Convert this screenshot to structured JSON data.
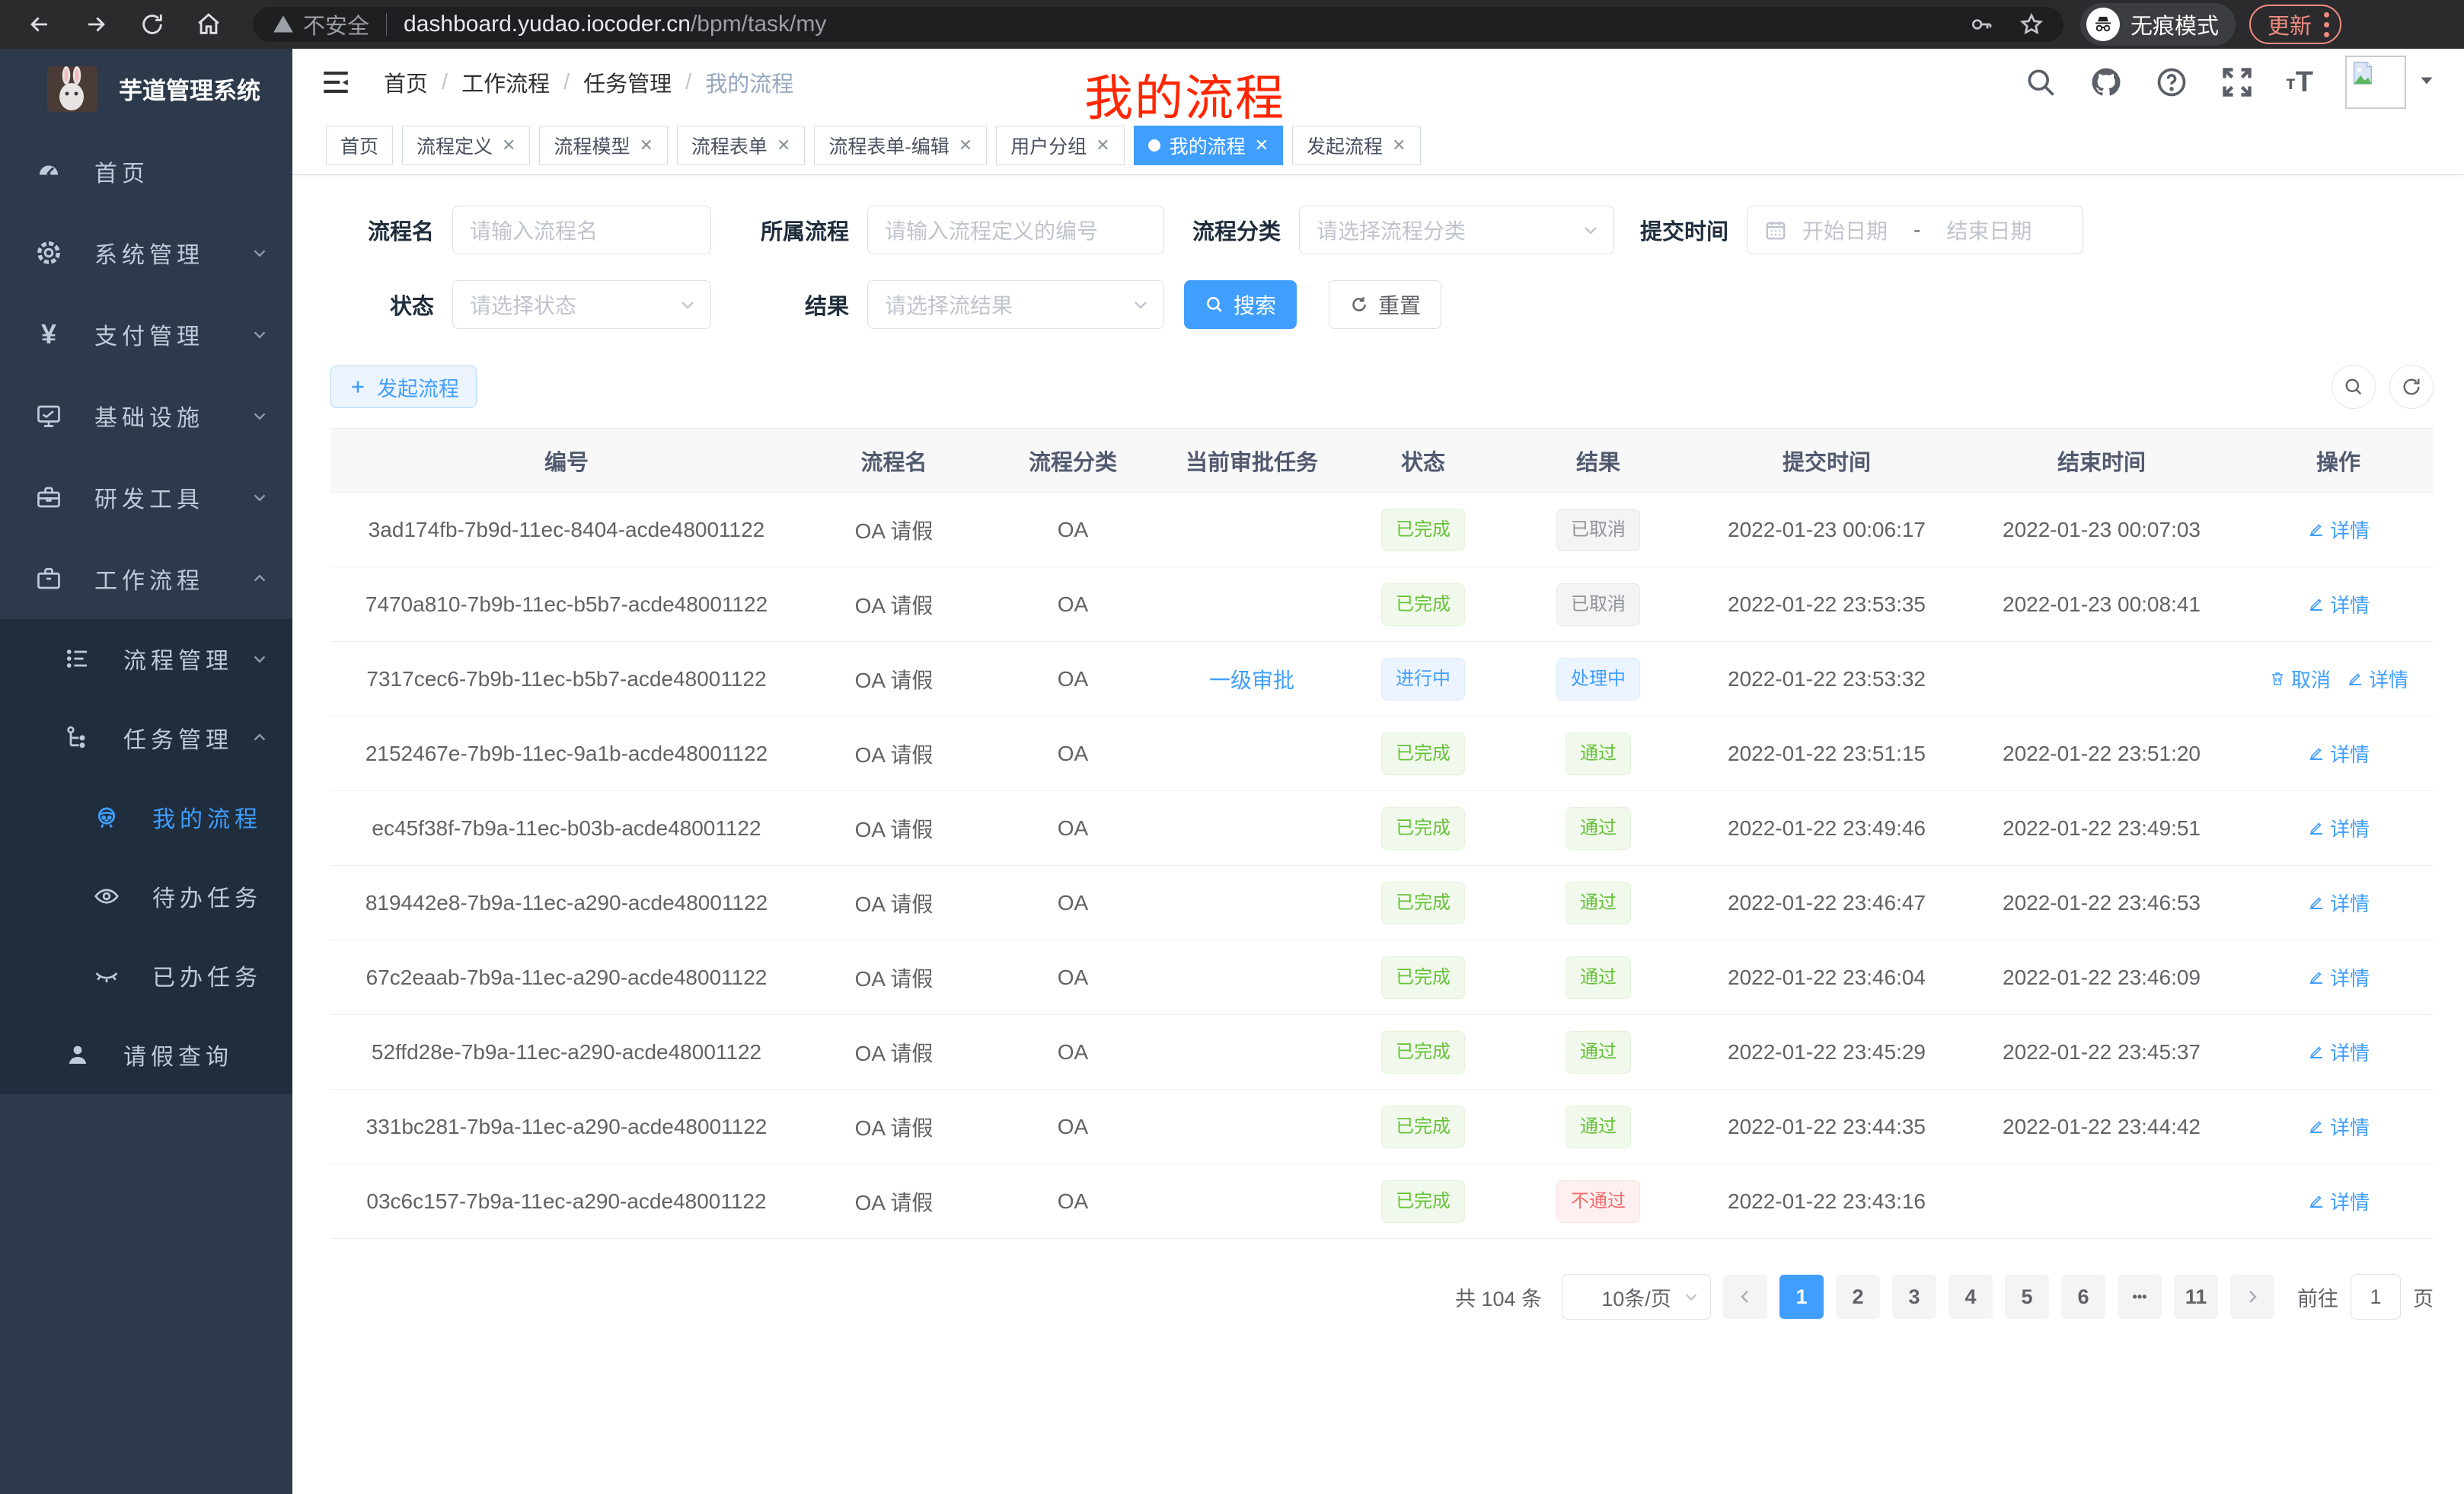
{
  "colors": {
    "primary": "#409eff",
    "success": "#67c23a",
    "info": "#909399",
    "danger": "#f56c6c",
    "annotation_red": "#ff2600",
    "sidebar_bg": "#2d3a4b",
    "submenu_bg": "#1f2d3d",
    "update_accent": "#f28b82"
  },
  "browser": {
    "security_label": "不安全",
    "url_host": "dashboard.yudao.iocoder.cn",
    "url_path": "/bpm/task/my",
    "incognito_label": "无痕模式",
    "update_label": "更新"
  },
  "sidebar": {
    "title": "芋道管理系统",
    "items": [
      {
        "label": "首页",
        "icon": "dashboard-icon",
        "level": 1
      },
      {
        "label": "系统管理",
        "icon": "gear-icon",
        "level": 1,
        "chevron": "down"
      },
      {
        "label": "支付管理",
        "icon": "yen-icon",
        "level": 1,
        "chevron": "down"
      },
      {
        "label": "基础设施",
        "icon": "monitor-icon",
        "level": 1,
        "chevron": "down"
      },
      {
        "label": "研发工具",
        "icon": "toolbox-icon",
        "level": 1,
        "chevron": "down"
      },
      {
        "label": "工作流程",
        "icon": "briefcase-icon",
        "level": 1,
        "chevron": "up"
      },
      {
        "label": "流程管理",
        "icon": "list-icon",
        "level": 2,
        "chevron": "down",
        "sub": true
      },
      {
        "label": "任务管理",
        "icon": "flow-icon",
        "level": 2,
        "chevron": "up",
        "sub": true
      },
      {
        "label": "我的流程",
        "icon": "robot-icon",
        "level": 3,
        "active": true,
        "sub": true
      },
      {
        "label": "待办任务",
        "icon": "eye-icon",
        "level": 3,
        "sub": true
      },
      {
        "label": "已办任务",
        "icon": "eye-closed-icon",
        "level": 3,
        "sub": true
      },
      {
        "label": "请假查询",
        "icon": "user-icon",
        "level": 2,
        "sub": true
      }
    ]
  },
  "header": {
    "breadcrumb": [
      "首页",
      "工作流程",
      "任务管理",
      "我的流程"
    ],
    "annotation": "我的流程",
    "icons": [
      "search-icon",
      "github-icon",
      "help-icon",
      "fullscreen-icon",
      "font-size-icon",
      "avatar-broken-image"
    ]
  },
  "tabs": [
    {
      "label": "首页",
      "closable": false
    },
    {
      "label": "流程定义",
      "closable": true
    },
    {
      "label": "流程模型",
      "closable": true
    },
    {
      "label": "流程表单",
      "closable": true
    },
    {
      "label": "流程表单-编辑",
      "closable": true
    },
    {
      "label": "用户分组",
      "closable": true
    },
    {
      "label": "我的流程",
      "closable": true,
      "active": true
    },
    {
      "label": "发起流程",
      "closable": true
    }
  ],
  "filters": {
    "name": {
      "label": "流程名",
      "placeholder": "请输入流程名"
    },
    "process": {
      "label": "所属流程",
      "placeholder": "请输入流程定义的编号"
    },
    "category": {
      "label": "流程分类",
      "placeholder": "请选择流程分类"
    },
    "time": {
      "label": "提交时间",
      "start_placeholder": "开始日期",
      "separator": "-",
      "end_placeholder": "结束日期"
    },
    "status": {
      "label": "状态",
      "placeholder": "请选择状态"
    },
    "result": {
      "label": "结果",
      "placeholder": "请选择流结果"
    },
    "search_label": "搜索",
    "reset_label": "重置"
  },
  "toolbar": {
    "launch_label": "发起流程"
  },
  "table": {
    "columns": [
      "编号",
      "流程名",
      "流程分类",
      "当前审批任务",
      "状态",
      "结果",
      "提交时间",
      "结束时间",
      "操作"
    ],
    "rows": [
      {
        "id": "3ad174fb-7b9d-11ec-8404-acde48001122",
        "name": "OA 请假",
        "category": "OA",
        "task": "",
        "status": {
          "label": "已完成",
          "type": "success"
        },
        "result": {
          "label": "已取消",
          "type": "info"
        },
        "submit": "2022-01-23 00:06:17",
        "end": "2022-01-23 00:07:03",
        "actions": [
          {
            "label": "详情",
            "icon": "edit-icon"
          }
        ]
      },
      {
        "id": "7470a810-7b9b-11ec-b5b7-acde48001122",
        "name": "OA 请假",
        "category": "OA",
        "task": "",
        "status": {
          "label": "已完成",
          "type": "success"
        },
        "result": {
          "label": "已取消",
          "type": "info"
        },
        "submit": "2022-01-22 23:53:35",
        "end": "2022-01-23 00:08:41",
        "actions": [
          {
            "label": "详情",
            "icon": "edit-icon"
          }
        ]
      },
      {
        "id": "7317cec6-7b9b-11ec-b5b7-acde48001122",
        "name": "OA 请假",
        "category": "OA",
        "task": "一级审批",
        "status": {
          "label": "进行中",
          "type": "primary"
        },
        "result": {
          "label": "处理中",
          "type": "primary"
        },
        "submit": "2022-01-22 23:53:32",
        "end": "",
        "actions": [
          {
            "label": "取消",
            "icon": "cancel-icon"
          },
          {
            "label": "详情",
            "icon": "edit-icon"
          }
        ]
      },
      {
        "id": "2152467e-7b9b-11ec-9a1b-acde48001122",
        "name": "OA 请假",
        "category": "OA",
        "task": "",
        "status": {
          "label": "已完成",
          "type": "success"
        },
        "result": {
          "label": "通过",
          "type": "success"
        },
        "submit": "2022-01-22 23:51:15",
        "end": "2022-01-22 23:51:20",
        "actions": [
          {
            "label": "详情",
            "icon": "edit-icon"
          }
        ]
      },
      {
        "id": "ec45f38f-7b9a-11ec-b03b-acde48001122",
        "name": "OA 请假",
        "category": "OA",
        "task": "",
        "status": {
          "label": "已完成",
          "type": "success"
        },
        "result": {
          "label": "通过",
          "type": "success"
        },
        "submit": "2022-01-22 23:49:46",
        "end": "2022-01-22 23:49:51",
        "actions": [
          {
            "label": "详情",
            "icon": "edit-icon"
          }
        ]
      },
      {
        "id": "819442e8-7b9a-11ec-a290-acde48001122",
        "name": "OA 请假",
        "category": "OA",
        "task": "",
        "status": {
          "label": "已完成",
          "type": "success"
        },
        "result": {
          "label": "通过",
          "type": "success"
        },
        "submit": "2022-01-22 23:46:47",
        "end": "2022-01-22 23:46:53",
        "actions": [
          {
            "label": "详情",
            "icon": "edit-icon"
          }
        ]
      },
      {
        "id": "67c2eaab-7b9a-11ec-a290-acde48001122",
        "name": "OA 请假",
        "category": "OA",
        "task": "",
        "status": {
          "label": "已完成",
          "type": "success"
        },
        "result": {
          "label": "通过",
          "type": "success"
        },
        "submit": "2022-01-22 23:46:04",
        "end": "2022-01-22 23:46:09",
        "actions": [
          {
            "label": "详情",
            "icon": "edit-icon"
          }
        ]
      },
      {
        "id": "52ffd28e-7b9a-11ec-a290-acde48001122",
        "name": "OA 请假",
        "category": "OA",
        "task": "",
        "status": {
          "label": "已完成",
          "type": "success"
        },
        "result": {
          "label": "通过",
          "type": "success"
        },
        "submit": "2022-01-22 23:45:29",
        "end": "2022-01-22 23:45:37",
        "actions": [
          {
            "label": "详情",
            "icon": "edit-icon"
          }
        ]
      },
      {
        "id": "331bc281-7b9a-11ec-a290-acde48001122",
        "name": "OA 请假",
        "category": "OA",
        "task": "",
        "status": {
          "label": "已完成",
          "type": "success"
        },
        "result": {
          "label": "通过",
          "type": "success"
        },
        "submit": "2022-01-22 23:44:35",
        "end": "2022-01-22 23:44:42",
        "actions": [
          {
            "label": "详情",
            "icon": "edit-icon"
          }
        ]
      },
      {
        "id": "03c6c157-7b9a-11ec-a290-acde48001122",
        "name": "OA 请假",
        "category": "OA",
        "task": "",
        "status": {
          "label": "已完成",
          "type": "success"
        },
        "result": {
          "label": "不通过",
          "type": "danger"
        },
        "submit": "2022-01-22 23:43:16",
        "end": "",
        "actions": [
          {
            "label": "详情",
            "icon": "edit-icon"
          }
        ]
      }
    ]
  },
  "pagination": {
    "total": "共 104 条",
    "per_page": "10条/页",
    "pages": [
      "1",
      "2",
      "3",
      "4",
      "5",
      "6",
      "...",
      "11"
    ],
    "active": "1",
    "goto_label": "前往",
    "goto_value": "1",
    "goto_suffix": "页"
  }
}
